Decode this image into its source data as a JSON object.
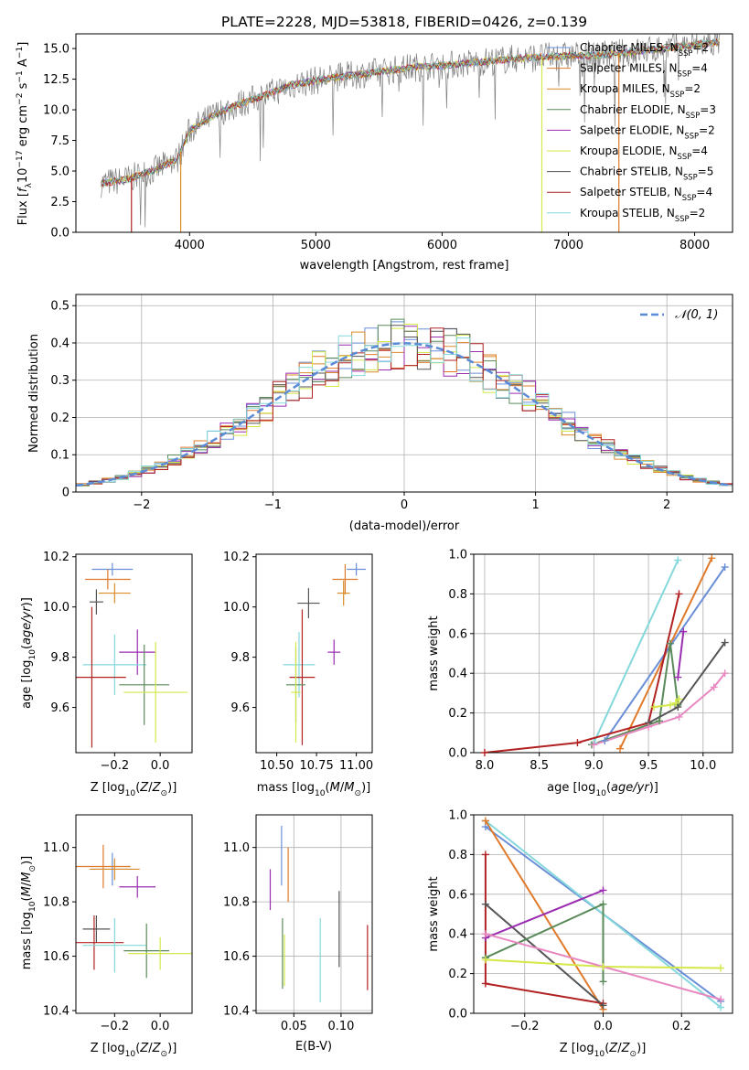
{
  "title": "PLATE=2228, MJD=53818, FIBERID=0426, z=0.139",
  "colors": {
    "Chabrier MILES": "#6a8fd8",
    "Salpeter MILES": "#e07a2a",
    "Kroupa MILES": "#d98c28",
    "Chabrier ELODIE": "#5a8a5a",
    "Salpeter ELODIE": "#9a2cb0",
    "Kroupa ELODIE": "#d4e84a",
    "Chabrier STELIB": "#555555",
    "Salpeter STELIB": "#b22222",
    "Kroupa STELIB": "#84d8dc",
    "extra": "#e888c0",
    "data": "#808080",
    "normal": "#5b8bd6"
  },
  "chart_data": [
    {
      "id": "spectrum",
      "type": "line",
      "xlabel": "wavelength [Angstrom, rest frame]",
      "ylabel": "Flux [f_λ 10^-17 erg cm^-2 s^-1 A^-1]",
      "xlim": [
        3100,
        8300
      ],
      "ylim": [
        0,
        16.2
      ],
      "xticks": [
        4000,
        5000,
        6000,
        7000,
        8000
      ],
      "yticks": [
        0.0,
        2.5,
        5.0,
        7.5,
        10.0,
        12.5,
        15.0
      ],
      "legend_position": "top-right",
      "legend": [
        "Chabrier MILES, N_SSP=2",
        "Salpeter MILES, N_SSP=4",
        "Kroupa MILES, N_SSP=2",
        "Chabrier ELODIE, N_SSP=3",
        "Salpeter ELODIE, N_SSP=2",
        "Kroupa ELODIE, N_SSP=4",
        "Chabrier STELIB, N_SSP=5",
        "Salpeter STELIB, N_SSP=4",
        "Kroupa STELIB, N_SSP=2"
      ],
      "continuum": {
        "x": [
          3300,
          3500,
          3700,
          3900,
          4000,
          4200,
          4400,
          4600,
          4800,
          5000,
          5200,
          5500,
          5800,
          6000,
          6300,
          6600,
          7000,
          7300,
          7500,
          7800,
          8000,
          8200
        ],
        "y": [
          4.0,
          4.3,
          5.0,
          5.9,
          8.3,
          9.6,
          10.5,
          11.2,
          12.0,
          12.4,
          12.7,
          13.1,
          13.5,
          13.6,
          13.9,
          14.2,
          14.4,
          14.5,
          14.7,
          15.1,
          15.3,
          15.5
        ]
      },
      "drops": [
        {
          "x": 3540,
          "series": "Salpeter STELIB"
        },
        {
          "x": 3930,
          "series": "Kroupa MILES"
        },
        {
          "x": 6790,
          "series": "Kroupa ELODIE"
        },
        {
          "x": 7400,
          "series": "Salpeter MILES"
        }
      ]
    },
    {
      "id": "residual-histogram",
      "type": "bar",
      "xlabel": "(data-model)/error",
      "ylabel": "Normed distribution",
      "xlim": [
        -2.5,
        2.5
      ],
      "ylim": [
        0,
        0.53
      ],
      "xticks": [
        -2,
        -1,
        0,
        1,
        2
      ],
      "yticks": [
        0.0,
        0.1,
        0.2,
        0.3,
        0.4,
        0.5
      ],
      "grid": true,
      "bin_width": 0.1,
      "legend_position": "top-right",
      "normal_label": "𝒩(0, 1)",
      "normal": {
        "mean": 0,
        "sigma": 1
      }
    },
    {
      "id": "age-vs-z",
      "type": "scatter",
      "xlabel": "Z [log10(Z/Z⊙)]",
      "ylabel": "age  [log10(age/yr)]",
      "xlim": [
        -0.37,
        0.14
      ],
      "ylim": [
        9.42,
        10.21
      ],
      "xticks": [
        -0.2,
        0.0
      ],
      "yticks": [
        9.6,
        9.8,
        10.0,
        10.2
      ],
      "points": [
        {
          "series": "Chabrier MILES",
          "x": -0.21,
          "y": 10.15,
          "xerr": 0.09,
          "yerr": 0.025
        },
        {
          "series": "Salpeter MILES",
          "x": -0.23,
          "y": 10.11,
          "xerr": 0.1,
          "yerr": 0.04
        },
        {
          "series": "Kroupa MILES",
          "x": -0.2,
          "y": 10.055,
          "xerr": 0.07,
          "yerr": 0.04
        },
        {
          "series": "Chabrier STELIB",
          "x": -0.28,
          "y": 10.02,
          "xerr": 0.03,
          "yerr": 0.05
        },
        {
          "series": "Salpeter ELODIE",
          "x": -0.1,
          "y": 9.82,
          "xerr": 0.08,
          "yerr": 0.09
        },
        {
          "series": "Kroupa STELIB",
          "x": -0.2,
          "y": 9.77,
          "xerr": 0.14,
          "yerr": 0.12
        },
        {
          "series": "Salpeter STELIB",
          "x": -0.3,
          "y": 9.72,
          "xerr": 0.15,
          "yerr": 0.28
        },
        {
          "series": "Chabrier ELODIE",
          "x": -0.07,
          "y": 9.69,
          "xerr": 0.11,
          "yerr": 0.16
        },
        {
          "series": "Kroupa ELODIE",
          "x": -0.02,
          "y": 9.66,
          "xerr": 0.14,
          "yerr": 0.2
        }
      ]
    },
    {
      "id": "age-vs-mass",
      "type": "scatter",
      "xlabel": "mass [log10(M/M⊙)]",
      "ylabel": "",
      "xlim": [
        10.37,
        11.1
      ],
      "ylim": [
        9.42,
        10.21
      ],
      "xticks": [
        10.5,
        10.75,
        11.0
      ],
      "yticks": [
        9.6,
        9.8,
        10.0,
        10.2
      ],
      "points": [
        {
          "series": "Chabrier MILES",
          "x": 11.0,
          "y": 10.15,
          "xerr": 0.06,
          "yerr": 0.025
        },
        {
          "series": "Salpeter MILES",
          "x": 10.93,
          "y": 10.11,
          "xerr": 0.08,
          "yerr": 0.06
        },
        {
          "series": "Kroupa MILES",
          "x": 10.92,
          "y": 10.055,
          "xerr": 0.04,
          "yerr": 0.05
        },
        {
          "series": "Chabrier STELIB",
          "x": 10.7,
          "y": 10.015,
          "xerr": 0.07,
          "yerr": 0.06
        },
        {
          "series": "Salpeter ELODIE",
          "x": 10.86,
          "y": 9.82,
          "xerr": 0.04,
          "yerr": 0.05
        },
        {
          "series": "Kroupa STELIB",
          "x": 10.64,
          "y": 9.77,
          "xerr": 0.1,
          "yerr": 0.13
        },
        {
          "series": "Salpeter STELIB",
          "x": 10.66,
          "y": 9.72,
          "xerr": 0.08,
          "yerr": 0.27
        },
        {
          "series": "Chabrier ELODIE",
          "x": 10.62,
          "y": 9.69,
          "xerr": 0.06,
          "yerr": 0.15
        },
        {
          "series": "Kroupa ELODIE",
          "x": 10.62,
          "y": 9.66,
          "xerr": 0.03,
          "yerr": 0.2
        }
      ]
    },
    {
      "id": "mass-weight-vs-age",
      "type": "line",
      "xlabel": "age  [log10(age/yr)]",
      "ylabel": "mass weight",
      "xlim": [
        7.9,
        10.27
      ],
      "ylim": [
        0,
        1.0
      ],
      "xticks": [
        8.0,
        8.5,
        9.0,
        9.5,
        10.0
      ],
      "yticks": [
        0.0,
        0.2,
        0.4,
        0.6,
        0.8,
        1.0
      ],
      "grid": true,
      "series": [
        {
          "color": "#84d8dc",
          "x": [
            9.0,
            9.77
          ],
          "y": [
            0.05,
            0.97
          ]
        },
        {
          "color": "#e07a2a",
          "x": [
            9.24,
            10.08
          ],
          "y": [
            0.02,
            0.98
          ]
        },
        {
          "color": "#6a8fd8",
          "x": [
            9.1,
            10.2
          ],
          "y": [
            0.06,
            0.935
          ]
        },
        {
          "color": "#b22222",
          "x": [
            8.0,
            8.85,
            9.5,
            9.78
          ],
          "y": [
            0.0,
            0.05,
            0.15,
            0.8
          ]
        },
        {
          "color": "#9a2cb0",
          "x": [
            9.77,
            9.82
          ],
          "y": [
            0.38,
            0.61
          ]
        },
        {
          "color": "#5a8a5a",
          "x": [
            8.98,
            9.6,
            9.7,
            9.77
          ],
          "y": [
            0.04,
            0.16,
            0.55,
            0.24
          ]
        },
        {
          "color": "#555555",
          "x": [
            9.5,
            9.77,
            10.2
          ],
          "y": [
            0.15,
            0.23,
            0.555
          ]
        },
        {
          "color": "#d4e84a",
          "x": [
            9.55,
            9.7,
            9.75,
            9.78
          ],
          "y": [
            0.23,
            0.24,
            0.25,
            0.27
          ]
        },
        {
          "color": "#e888c0",
          "x": [
            9.0,
            9.5,
            9.78,
            10.1,
            10.2
          ],
          "y": [
            0.04,
            0.13,
            0.18,
            0.33,
            0.4
          ]
        }
      ]
    },
    {
      "id": "mass-vs-z",
      "type": "scatter",
      "xlabel": "Z [log10(Z/Z⊙)]",
      "ylabel": "mass [log10(M/M⊙)]",
      "xlim": [
        -0.37,
        0.14
      ],
      "ylim": [
        10.39,
        11.12
      ],
      "xticks": [
        -0.2,
        0.0
      ],
      "yticks": [
        10.4,
        10.6,
        10.8,
        11.0
      ],
      "points": [
        {
          "series": "Chabrier MILES",
          "x": -0.21,
          "y": 10.92,
          "xerr": 0.09,
          "yerr": 0.06
        },
        {
          "series": "Salpeter MILES",
          "x": -0.25,
          "y": 10.93,
          "xerr": 0.12,
          "yerr": 0.08
        },
        {
          "series": "Kroupa MILES",
          "x": -0.2,
          "y": 10.92,
          "xerr": 0.11,
          "yerr": 0.04
        },
        {
          "series": "Salpeter ELODIE",
          "x": -0.1,
          "y": 10.855,
          "xerr": 0.08,
          "yerr": 0.04
        },
        {
          "series": "Chabrier STELIB",
          "x": -0.28,
          "y": 10.7,
          "xerr": 0.06,
          "yerr": 0.05
        },
        {
          "series": "Salpeter STELIB",
          "x": -0.29,
          "y": 10.65,
          "xerr": 0.13,
          "yerr": 0.1
        },
        {
          "series": "Kroupa STELIB",
          "x": -0.2,
          "y": 10.64,
          "xerr": 0.14,
          "yerr": 0.1
        },
        {
          "series": "Chabrier ELODIE",
          "x": -0.06,
          "y": 10.62,
          "xerr": 0.1,
          "yerr": 0.1
        },
        {
          "series": "Kroupa ELODIE",
          "x": 0.0,
          "y": 10.61,
          "xerr": 0.14,
          "yerr": 0.06
        }
      ]
    },
    {
      "id": "mass-vs-ebv",
      "type": "scatter",
      "xlabel": "E(B-V)",
      "ylabel": "",
      "xlim": [
        0.01,
        0.133
      ],
      "ylim": [
        10.39,
        11.12
      ],
      "xticks": [
        0.05,
        0.1
      ],
      "yticks": [
        10.4,
        10.6,
        10.8,
        11.0
      ],
      "grid": true,
      "points": [
        {
          "series": "Salpeter ELODIE",
          "x": 0.025,
          "y": 10.845,
          "xerr": 0,
          "yerr": 0.075
        },
        {
          "series": "Chabrier MILES",
          "x": 0.037,
          "y": 10.97,
          "xerr": 0,
          "yerr": 0.11
        },
        {
          "series": "Salpeter MILES",
          "x": 0.044,
          "y": 10.9,
          "xerr": 0,
          "yerr": 0.1
        },
        {
          "series": "Chabrier ELODIE",
          "x": 0.038,
          "y": 10.61,
          "xerr": 0,
          "yerr": 0.13
        },
        {
          "series": "Kroupa ELODIE",
          "x": 0.04,
          "y": 10.585,
          "xerr": 0,
          "yerr": 0.095
        },
        {
          "series": "Kroupa STELIB",
          "x": 0.078,
          "y": 10.585,
          "xerr": 0,
          "yerr": 0.155
        },
        {
          "series": "Chabrier STELIB",
          "x": 0.098,
          "y": 10.7,
          "xerr": 0,
          "yerr": 0.14
        },
        {
          "series": "Salpeter STELIB",
          "x": 0.128,
          "y": 10.595,
          "xerr": 0,
          "yerr": 0.12
        }
      ]
    },
    {
      "id": "mass-weight-vs-z",
      "type": "line",
      "xlabel": "Z [log10(Z/Z⊙)]",
      "ylabel": "mass weight",
      "xlim": [
        -0.33,
        0.33
      ],
      "ylim": [
        0,
        1.0
      ],
      "xticks": [
        -0.2,
        0.0,
        0.2
      ],
      "yticks": [
        0.0,
        0.2,
        0.4,
        0.6,
        0.8,
        1.0
      ],
      "grid": true,
      "series": [
        {
          "color": "#6a8fd8",
          "x": [
            -0.3,
            0.3
          ],
          "y": [
            0.94,
            0.06
          ]
        },
        {
          "color": "#84d8dc",
          "x": [
            -0.3,
            0.3
          ],
          "y": [
            0.97,
            0.03
          ]
        },
        {
          "color": "#e07a2a",
          "x": [
            -0.3,
            0.0
          ],
          "y": [
            0.97,
            0.02
          ]
        },
        {
          "color": "#b22222",
          "x": [
            -0.3,
            -0.3,
            0.0
          ],
          "y": [
            0.8,
            0.15,
            0.05
          ]
        },
        {
          "color": "#555555",
          "x": [
            -0.3,
            0.0
          ],
          "y": [
            0.55,
            0.04
          ]
        },
        {
          "color": "#9a2cb0",
          "x": [
            -0.3,
            0.0
          ],
          "y": [
            0.38,
            0.62
          ]
        },
        {
          "color": "#5a8a5a",
          "x": [
            -0.3,
            0.0,
            0.0
          ],
          "y": [
            0.28,
            0.55,
            0.16
          ]
        },
        {
          "color": "#d4e84a",
          "x": [
            -0.3,
            0.0,
            0.3
          ],
          "y": [
            0.27,
            0.235,
            0.228
          ]
        },
        {
          "color": "#e888c0",
          "x": [
            -0.3,
            0.3
          ],
          "y": [
            0.4,
            0.07
          ]
        }
      ]
    }
  ]
}
